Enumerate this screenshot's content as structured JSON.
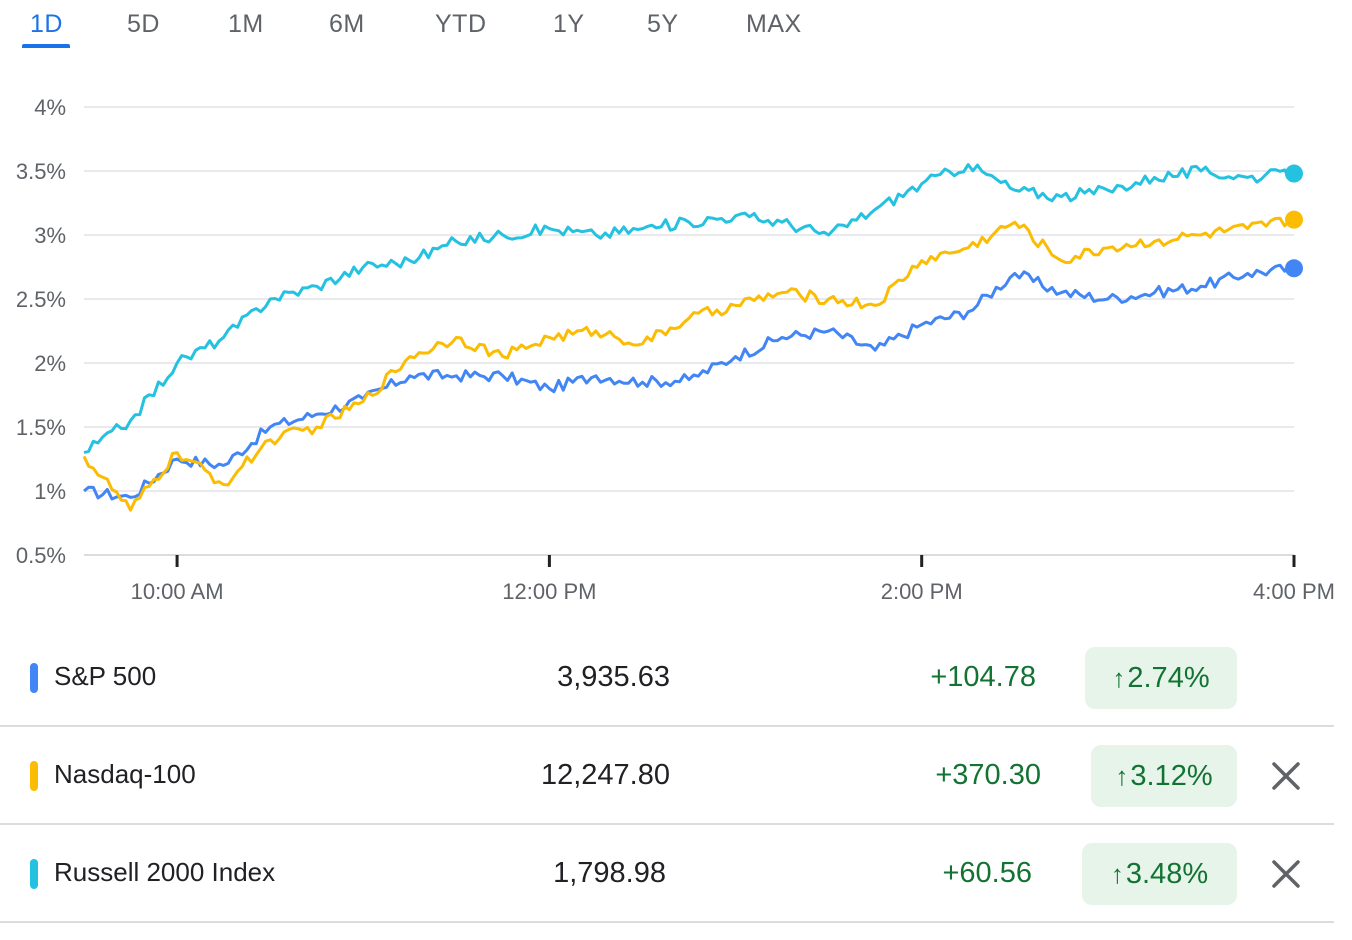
{
  "tabs": [
    "1D",
    "5D",
    "1M",
    "6M",
    "YTD",
    "1Y",
    "5Y",
    "MAX"
  ],
  "active_tab": "1D",
  "icons": {
    "up_arrow": "↑",
    "remove": "close-icon"
  },
  "colors": {
    "sp500": "#4285f4",
    "nasdaq": "#fbbc04",
    "russell": "#24c1e0",
    "positive": "#137333",
    "positive_bg": "#e6f4ea",
    "accent": "#1a73e8",
    "grid": "#e8eaed"
  },
  "chart_data": {
    "type": "line",
    "y_ticks": [
      "4%",
      "3.5%",
      "3%",
      "2.5%",
      "2%",
      "1.5%",
      "1%",
      "0.5%"
    ],
    "x_ticks": [
      "10:00 AM",
      "12:00 PM",
      "2:00 PM",
      "4:00 PM"
    ],
    "ylim": [
      0.5,
      4
    ],
    "xlim": [
      "9:30",
      "16:00"
    ],
    "grid": true,
    "x": [
      "9:30",
      "9:45",
      "10:00",
      "10:15",
      "10:30",
      "10:45",
      "11:00",
      "11:15",
      "11:30",
      "11:45",
      "12:00",
      "12:15",
      "12:30",
      "12:45",
      "13:00",
      "13:15",
      "13:30",
      "13:45",
      "14:00",
      "14:15",
      "14:30",
      "14:45",
      "15:00",
      "15:15",
      "15:30",
      "15:45",
      "16:00"
    ],
    "series": [
      {
        "name": "S&P 500",
        "color": "#4285f4",
        "values": [
          1.0,
          0.95,
          1.25,
          1.2,
          1.5,
          1.6,
          1.72,
          1.9,
          1.9,
          1.9,
          1.8,
          1.9,
          1.85,
          1.87,
          2.05,
          2.2,
          2.25,
          2.1,
          2.3,
          2.4,
          2.7,
          2.55,
          2.5,
          2.55,
          2.6,
          2.7,
          2.74
        ]
      },
      {
        "name": "Nasdaq-100",
        "color": "#fbbc04",
        "values": [
          1.27,
          0.85,
          1.3,
          1.05,
          1.4,
          1.5,
          1.7,
          2.05,
          2.2,
          2.05,
          2.2,
          2.25,
          2.15,
          2.35,
          2.45,
          2.55,
          2.5,
          2.45,
          2.8,
          2.9,
          3.1,
          2.8,
          2.9,
          2.95,
          3.0,
          3.05,
          3.12
        ]
      },
      {
        "name": "Russell 2000 Index",
        "color": "#24c1e0",
        "values": [
          1.3,
          1.55,
          2.0,
          2.2,
          2.5,
          2.6,
          2.75,
          2.8,
          2.95,
          3.0,
          3.05,
          3.0,
          3.05,
          3.1,
          3.15,
          3.1,
          3.0,
          3.2,
          3.4,
          3.55,
          3.35,
          3.3,
          3.35,
          3.45,
          3.5,
          3.45,
          3.48
        ]
      }
    ]
  },
  "rows": [
    {
      "name": "S&P 500",
      "price": "3,935.63",
      "change": "+104.78",
      "percent": "2.74%",
      "color": "#4285f4",
      "removable": false
    },
    {
      "name": "Nasdaq-100",
      "price": "12,247.80",
      "change": "+370.30",
      "percent": "3.12%",
      "color": "#fbbc04",
      "removable": true
    },
    {
      "name": "Russell 2000 Index",
      "price": "1,798.98",
      "change": "+60.56",
      "percent": "3.48%",
      "color": "#24c1e0",
      "removable": true
    }
  ]
}
